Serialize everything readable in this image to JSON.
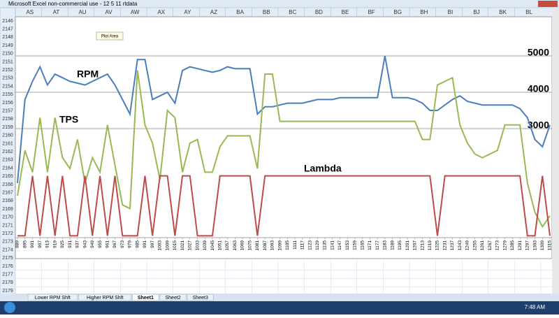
{
  "window": {
    "title": "Microsoft Excel non-commercial use - 12 5 11 rtdata"
  },
  "columns": [
    "AS",
    "AT",
    "AU",
    "AV",
    "AW",
    "AX",
    "AY",
    "AZ",
    "BA",
    "BB",
    "BC",
    "BD",
    "BE",
    "BF",
    "BG",
    "BH",
    "BI",
    "BJ",
    "BK",
    "BL"
  ],
  "rows": [
    2146,
    2147,
    2148,
    2149,
    2150,
    2151,
    2152,
    2153,
    2154,
    2155,
    2156,
    2157,
    2158,
    2159,
    2160,
    2161,
    2162,
    2163,
    2164,
    2165,
    2166,
    2167,
    2168,
    2169,
    2170,
    2171,
    2172,
    2173,
    2174,
    2175,
    2176,
    2177,
    2178,
    2179
  ],
  "sheet_tabs": [
    "Lower RPM Shft",
    "Higher RPM Shft",
    "Sheet1",
    "Sheet2",
    "Sheet3"
  ],
  "taskbar": {
    "time": "7:48 AM"
  },
  "chart_data": {
    "type": "line",
    "tooltip": "Plot Area",
    "annotations": [
      "RPM",
      "TPS",
      "Lambda"
    ],
    "categories": [
      889,
      895,
      901,
      907,
      913,
      919,
      925,
      931,
      937,
      943,
      949,
      955,
      961,
      967,
      973,
      979,
      985,
      991,
      997,
      1003,
      1009,
      1015,
      1021,
      1027,
      1033,
      1039,
      1045,
      1051,
      1057,
      1063,
      1069,
      1075,
      1081,
      1087,
      1093,
      1099,
      1105,
      1111,
      1117,
      1123,
      1129,
      1135,
      1141,
      1147,
      1153,
      1159,
      1165,
      1171,
      1177,
      1183,
      1189,
      1195,
      1201,
      1207,
      1213,
      1219,
      1225,
      1231,
      1237,
      1243,
      1249,
      1255,
      1261,
      1267,
      1273,
      1279,
      1285,
      1291,
      1297,
      1303,
      1309,
      1315
    ],
    "ylim": [
      0,
      6000
    ],
    "yticks": [
      3000,
      4000,
      5000
    ],
    "grid": true,
    "series": [
      {
        "name": "RPM",
        "color": "#4a7ebb",
        "values": [
          1500,
          3800,
          4300,
          4700,
          4200,
          4500,
          4400,
          4300,
          4250,
          4200,
          4300,
          4400,
          4500,
          4200,
          3800,
          3400,
          4900,
          4900,
          3800,
          3900,
          4000,
          3700,
          4600,
          4700,
          4650,
          4600,
          4550,
          4600,
          4700,
          4650,
          4650,
          4650,
          3400,
          3600,
          3600,
          3650,
          3700,
          3700,
          3700,
          3750,
          3800,
          3800,
          3800,
          3850,
          3850,
          3850,
          3850,
          3850,
          3850,
          5000,
          3850,
          3850,
          3850,
          3800,
          3700,
          3500,
          3500,
          3650,
          3800,
          3900,
          3750,
          3700,
          3650,
          3650,
          3650,
          3650,
          3650,
          3550,
          3300,
          2700,
          2500,
          3100
        ]
      },
      {
        "name": "TPS",
        "color": "#98b954",
        "values": [
          1150,
          2400,
          1800,
          3300,
          1800,
          3300,
          2200,
          1900,
          2700,
          1500,
          2200,
          1800,
          3100,
          2000,
          900,
          800,
          4600,
          3100,
          2600,
          1600,
          3500,
          3300,
          1800,
          2600,
          2700,
          1800,
          1800,
          2500,
          2800,
          2800,
          2800,
          2800,
          1900,
          4500,
          4500,
          3200,
          3200,
          3200,
          3200,
          3200,
          3200,
          3200,
          3200,
          3200,
          3200,
          3200,
          3200,
          3200,
          3200,
          3200,
          3200,
          3200,
          3200,
          3200,
          2700,
          2700,
          4200,
          4300,
          4400,
          3100,
          2600,
          2300,
          2200,
          2300,
          2400,
          3100,
          3100,
          3100,
          1500,
          700,
          300,
          600
        ]
      },
      {
        "name": "Lambda",
        "color": "#be4b48",
        "values": [
          50,
          50,
          1700,
          50,
          1700,
          50,
          1700,
          50,
          50,
          1700,
          50,
          1700,
          50,
          1700,
          50,
          50,
          50,
          1700,
          50,
          1700,
          1700,
          50,
          1700,
          1700,
          50,
          50,
          50,
          1700,
          1700,
          1700,
          1700,
          1700,
          50,
          1700,
          1700,
          1700,
          1700,
          1700,
          1700,
          1700,
          1700,
          1700,
          1700,
          1700,
          1700,
          1700,
          1700,
          1700,
          1700,
          1700,
          1700,
          1700,
          1700,
          1700,
          1700,
          1700,
          50,
          1700,
          1700,
          1700,
          1700,
          1700,
          1700,
          1700,
          1700,
          1700,
          1700,
          1700,
          50,
          50,
          1700,
          50
        ]
      }
    ]
  }
}
